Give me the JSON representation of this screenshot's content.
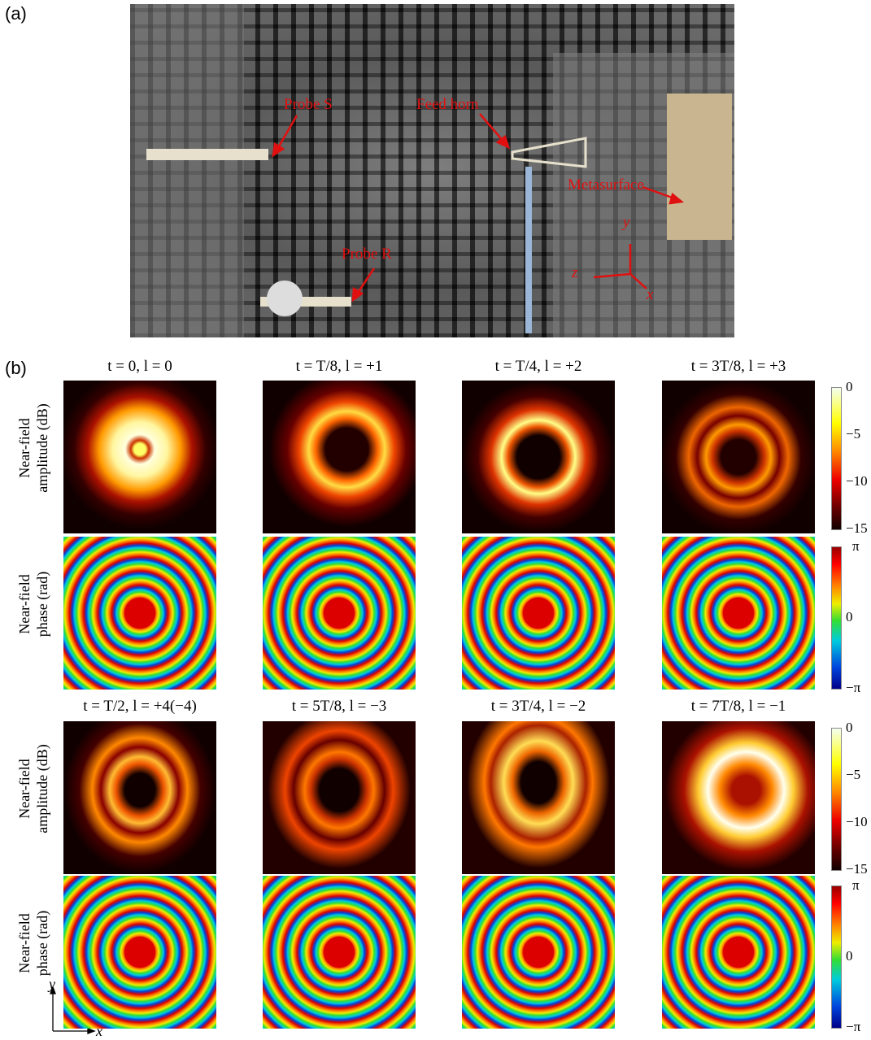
{
  "panel_a": {
    "label": "(a)",
    "callouts": [
      "Probe S",
      "Feed horn",
      "Metasurface",
      "Probe R"
    ],
    "axis_labels": {
      "x": "x",
      "y": "y",
      "z": "z"
    }
  },
  "panel_b": {
    "label": "(b)",
    "titles": [
      "t = 0, l = 0",
      "t = T/8, l = +1",
      "t = T/4, l = +2",
      "t = 3T/8, l = +3",
      "t = T/2, l = +4(−4)",
      "t = 5T/8, l = −3",
      "t = 3T/4, l = −2",
      "t = 7T/8, l = −1"
    ],
    "amplitude_label": [
      "Near-field",
      "amplitude (dB)"
    ],
    "phase_label": [
      "Near-field",
      "phase (rad)"
    ],
    "amplitude_colorbar": [
      "0",
      "−5",
      "−10",
      "−15"
    ],
    "phase_colorbar": [
      "π",
      "0",
      "−π"
    ],
    "axis_labels": {
      "x": "x",
      "y": "y"
    }
  }
}
